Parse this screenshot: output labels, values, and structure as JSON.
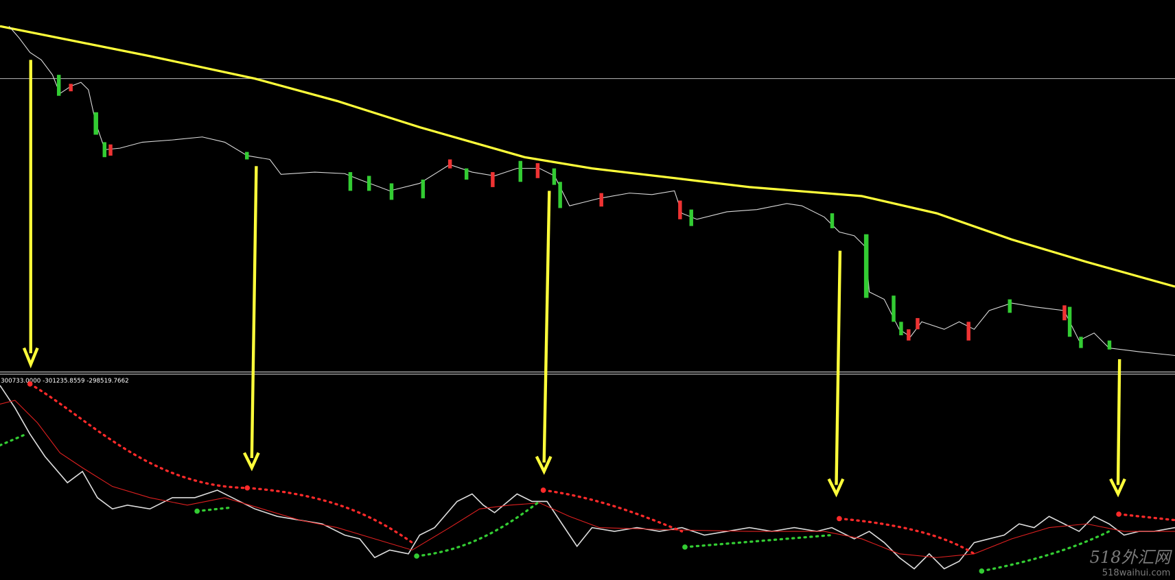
{
  "indicator_readout": "300733.0000 -301235.8559 -298519.7662",
  "watermark": {
    "title": "518外汇网",
    "url": "518waihui.com"
  }
}
